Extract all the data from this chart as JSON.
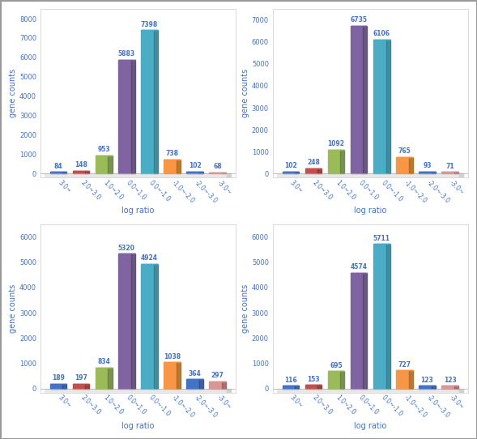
{
  "subplots": [
    {
      "values": [
        84,
        148,
        953,
        5883,
        7398,
        738,
        102,
        68
      ],
      "ylim": [
        0,
        8500
      ],
      "yticks": [
        0,
        1000,
        2000,
        3000,
        4000,
        5000,
        6000,
        7000,
        8000
      ]
    },
    {
      "values": [
        102,
        248,
        1092,
        6735,
        6106,
        765,
        93,
        71
      ],
      "ylim": [
        0,
        7500
      ],
      "yticks": [
        0,
        1000,
        2000,
        3000,
        4000,
        5000,
        6000,
        7000
      ]
    },
    {
      "values": [
        189,
        197,
        834,
        5320,
        4924,
        1038,
        364,
        297
      ],
      "ylim": [
        0,
        6500
      ],
      "yticks": [
        0,
        1000,
        2000,
        3000,
        4000,
        5000,
        6000
      ]
    },
    {
      "values": [
        116,
        153,
        695,
        4574,
        5711,
        727,
        123,
        123
      ],
      "ylim": [
        0,
        6500
      ],
      "yticks": [
        0,
        1000,
        2000,
        3000,
        4000,
        5000,
        6000
      ]
    }
  ],
  "categories": [
    "3.0~",
    "2.0~3.0",
    "1.0~2.0",
    "0.0~1.0",
    "0.0~-1.0",
    "-1.0~-2.0",
    "-2.0~-3.0",
    "-3.0~"
  ],
  "bar_colors": [
    "#4472c4",
    "#c0504d",
    "#9bbb59",
    "#8064a2",
    "#4bacc6",
    "#f79646",
    "#4472c4",
    "#d99694"
  ],
  "bar_colors_dark": [
    "#2d4f8e",
    "#8b3330",
    "#6a8540",
    "#5a4673",
    "#337f92",
    "#b06a20",
    "#2d4f8e",
    "#a06060"
  ],
  "xlabel": "log ratio",
  "ylabel": "gene counts",
  "label_color": "#4472c4",
  "bg_color": "#ffffff",
  "value_label_color": "#4472c4"
}
